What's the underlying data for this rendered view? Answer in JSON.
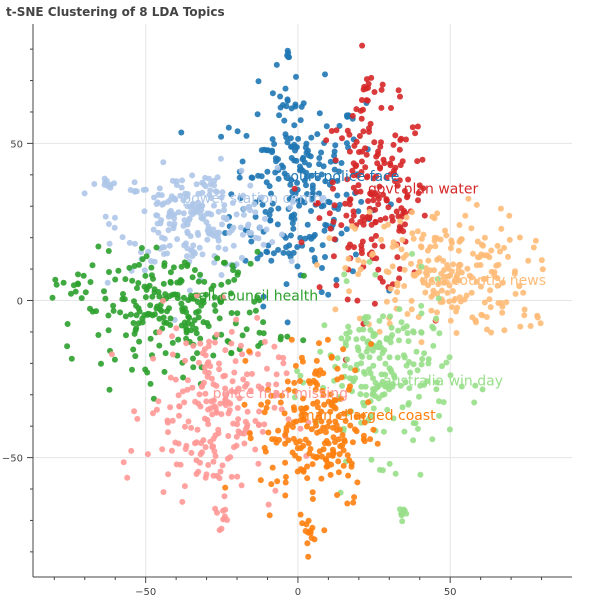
{
  "chart_data": {
    "type": "scatter",
    "title": "t-SNE Clustering of 8 LDA Topics",
    "xlabel": "",
    "ylabel": "",
    "xlim": [
      -87,
      90
    ],
    "ylim": [
      -88,
      88
    ],
    "x_ticks": [
      -50,
      0,
      50
    ],
    "y_ticks": [
      50,
      0,
      -50
    ],
    "grid": true,
    "legend": "none",
    "clusters": [
      {
        "label": "court police face",
        "color": "#1f77b4",
        "center": [
          0,
          35
        ],
        "spread": [
          11,
          16
        ],
        "count": 240,
        "label_pos": [
          -5,
          38
        ]
      },
      {
        "label": "govt plan water",
        "color": "#d62728",
        "center": [
          25,
          32
        ],
        "spread": [
          9,
          15
        ],
        "count": 200,
        "label_pos": [
          23,
          34
        ]
      },
      {
        "label": "power station centre",
        "color": "#aec7e8",
        "center": [
          -33,
          26
        ],
        "spread": [
          13,
          8
        ],
        "count": 220,
        "label_pos": [
          -38,
          31
        ]
      },
      {
        "label": "nsw country news",
        "color": "#ffbb78",
        "center": [
          47,
          9
        ],
        "spread": [
          14,
          10
        ],
        "count": 220,
        "label_pos": [
          40,
          5
        ]
      },
      {
        "label": "call council health",
        "color": "#2ca02c",
        "center": [
          -40,
          -3
        ],
        "spread": [
          16,
          9
        ],
        "count": 240,
        "label_pos": [
          -35,
          0
        ]
      },
      {
        "label": "australia win day",
        "color": "#98df8a",
        "center": [
          28,
          -23
        ],
        "spread": [
          11,
          13
        ],
        "count": 210,
        "label_pos": [
          28,
          -27
        ]
      },
      {
        "label": "police man missing",
        "color": "#ff9896",
        "center": [
          -28,
          -35
        ],
        "spread": [
          11,
          14
        ],
        "count": 220,
        "label_pos": [
          -28,
          -31
        ]
      },
      {
        "label": "man charged coast",
        "color": "#ff7f0e",
        "center": [
          6,
          -40
        ],
        "spread": [
          9,
          13
        ],
        "count": 210,
        "label_pos": [
          1,
          -38
        ]
      }
    ],
    "extra_groups": [
      {
        "color": "#1f77b4",
        "center": [
          -3,
          62
        ],
        "spread": [
          1.5,
          1.5
        ],
        "count": 8
      },
      {
        "color": "#1f77b4",
        "center": [
          -3,
          78
        ],
        "spread": [
          1,
          1
        ],
        "count": 5
      },
      {
        "color": "#d62728",
        "center": [
          23,
          67
        ],
        "spread": [
          1,
          3
        ],
        "count": 10
      },
      {
        "color": "#aec7e8",
        "center": [
          -62,
          37
        ],
        "spread": [
          3,
          1
        ],
        "count": 10
      },
      {
        "color": "#2ca02c",
        "center": [
          -75,
          4
        ],
        "spread": [
          3,
          2
        ],
        "count": 10
      },
      {
        "color": "#ffbb78",
        "center": [
          77,
          -5
        ],
        "spread": [
          3,
          2
        ],
        "count": 8
      },
      {
        "color": "#98df8a",
        "center": [
          34,
          -67
        ],
        "spread": [
          1,
          2
        ],
        "count": 7
      },
      {
        "color": "#ff9896",
        "center": [
          -24,
          -70
        ],
        "spread": [
          1,
          2
        ],
        "count": 8
      },
      {
        "color": "#ff7f0e",
        "center": [
          4,
          -75
        ],
        "spread": [
          1,
          4
        ],
        "count": 10
      }
    ]
  }
}
